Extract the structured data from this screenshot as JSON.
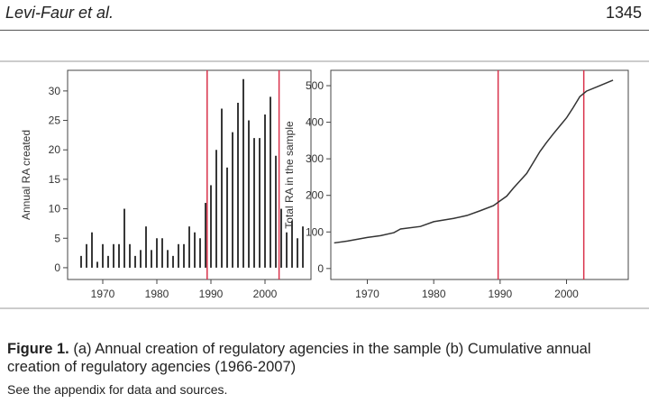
{
  "header": {
    "author": "Levi-Faur et al.",
    "page": "1345"
  },
  "chart_data": [
    {
      "type": "bar",
      "ylabel": "Annual RA created",
      "color": "#222222",
      "x": [
        1966,
        1967,
        1968,
        1969,
        1970,
        1971,
        1972,
        1973,
        1974,
        1975,
        1976,
        1977,
        1978,
        1979,
        1980,
        1981,
        1982,
        1983,
        1984,
        1985,
        1986,
        1987,
        1988,
        1989,
        1990,
        1991,
        1992,
        1993,
        1994,
        1995,
        1996,
        1997,
        1998,
        1999,
        2000,
        2001,
        2002,
        2003,
        2004,
        2005,
        2006,
        2007
      ],
      "values": [
        2,
        4,
        6,
        1,
        4,
        2,
        4,
        4,
        10,
        4,
        2,
        3,
        7,
        3,
        5,
        5,
        3,
        2,
        4,
        4,
        7,
        6,
        5,
        11,
        14,
        20,
        27,
        17,
        23,
        28,
        32,
        25,
        22,
        22,
        26,
        29,
        19,
        10,
        6,
        8,
        5,
        7
      ],
      "xlim": [
        1963.5,
        2008.5
      ],
      "xticks": [
        1970,
        1980,
        1990,
        2000
      ],
      "ylim": [
        -2,
        33.5
      ],
      "yticks": [
        0,
        5,
        10,
        15,
        20,
        25,
        30
      ],
      "reference_lines": [
        1989.3,
        2002.6
      ],
      "reference_line_color": "#d9314a"
    },
    {
      "type": "line",
      "ylabel": "Total RA in the sample",
      "color": "#333333",
      "x": [
        1965,
        1967,
        1970,
        1972,
        1974,
        1975,
        1978,
        1980,
        1983,
        1985,
        1987,
        1989,
        1990,
        1991,
        1992,
        1993,
        1994,
        1995,
        1996,
        1997,
        1998,
        1999,
        2000,
        2001,
        2002,
        2003,
        2005,
        2007
      ],
      "values": [
        70,
        75,
        85,
        90,
        98,
        108,
        115,
        128,
        137,
        145,
        158,
        172,
        185,
        198,
        220,
        240,
        260,
        290,
        320,
        345,
        368,
        390,
        412,
        440,
        470,
        485,
        500,
        515
      ],
      "xlim": [
        1964.5,
        2009.3
      ],
      "xticks": [
        1970,
        1980,
        1990,
        2000
      ],
      "ylim": [
        -30,
        542
      ],
      "yticks": [
        0,
        100,
        200,
        300,
        400,
        500
      ],
      "reference_lines": [
        1989.7,
        2002.6
      ],
      "reference_line_color": "#d9314a"
    }
  ],
  "caption": {
    "label": "Figure 1.",
    "text": "(a) Annual creation of regulatory agencies in the sample (b) Cumulative annual creation of regulatory agencies (1966-2007)",
    "note": "See the appendix for data and sources."
  }
}
